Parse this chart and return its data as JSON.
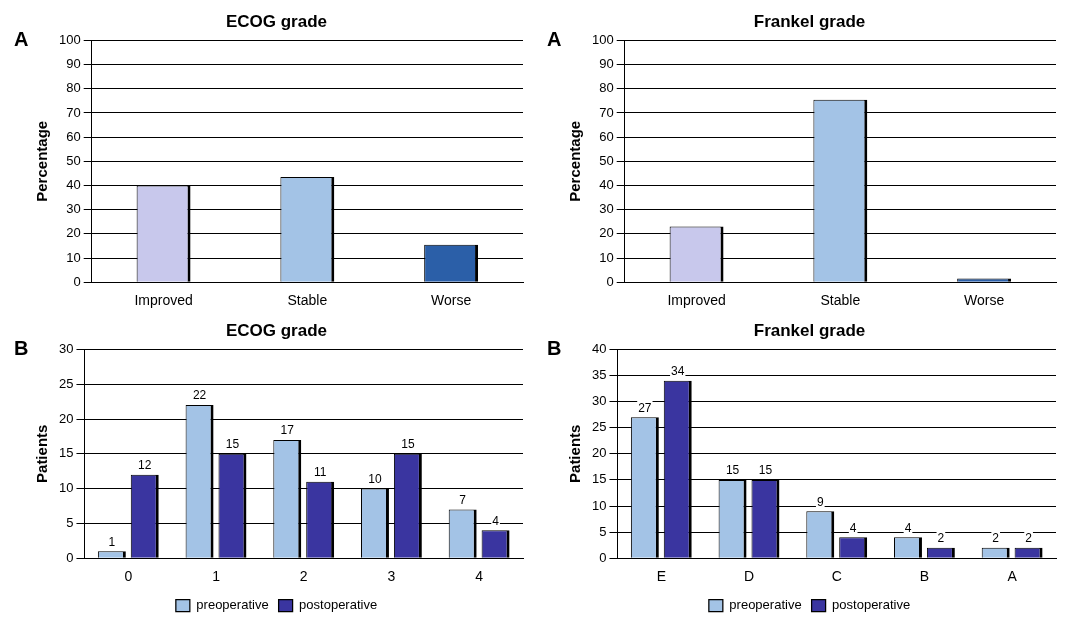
{
  "chart_data": [
    {
      "type": "bar",
      "title": "ECOG grade",
      "ylabel": "Percentage",
      "annotations": [
        "A"
      ],
      "categories": [
        "Improved",
        "Stable",
        "Worse"
      ],
      "values": [
        40,
        43.5,
        15.5
      ],
      "colors": [
        "#c8c8ec",
        "#a3c3e6",
        "#2b5fa8"
      ],
      "ylim": [
        0,
        100
      ],
      "yticks": [
        0,
        10,
        20,
        30,
        40,
        50,
        60,
        70,
        80,
        90,
        100
      ],
      "grid": "y"
    },
    {
      "type": "bar",
      "title": "Frankel grade",
      "ylabel": "Percentage",
      "annotations": [
        "A"
      ],
      "categories": [
        "Improved",
        "Stable",
        "Worse"
      ],
      "values": [
        23,
        75.5,
        1.5
      ],
      "colors": [
        "#c8c8ec",
        "#a3c3e6",
        "#2b5fa8"
      ],
      "ylim": [
        0,
        100
      ],
      "yticks": [
        0,
        10,
        20,
        30,
        40,
        50,
        60,
        70,
        80,
        90,
        100
      ],
      "grid": "y"
    },
    {
      "type": "bar",
      "title": "ECOG grade",
      "ylabel": "Patients",
      "annotations": [
        "B"
      ],
      "categories": [
        "0",
        "1",
        "2",
        "3",
        "4"
      ],
      "series": [
        {
          "name": "preoperative",
          "color": "#a3c3e6",
          "values": [
            1,
            22,
            17,
            10,
            7
          ]
        },
        {
          "name": "postoperative",
          "color": "#3a35a0",
          "values": [
            12,
            15,
            11,
            15,
            4
          ]
        }
      ],
      "ylim": [
        0,
        30
      ],
      "yticks": [
        0,
        5,
        10,
        15,
        20,
        25,
        30
      ],
      "grid": "y",
      "legend": "bottom",
      "data_labels": true
    },
    {
      "type": "bar",
      "title": "Frankel grade",
      "ylabel": "Patients",
      "annotations": [
        "B"
      ],
      "categories": [
        "E",
        "D",
        "C",
        "B",
        "A"
      ],
      "series": [
        {
          "name": "preoperative",
          "color": "#a3c3e6",
          "values": [
            27,
            15,
            9,
            4,
            2
          ]
        },
        {
          "name": "postoperative",
          "color": "#3a35a0",
          "values": [
            34,
            15,
            4,
            2,
            2
          ]
        }
      ],
      "ylim": [
        0,
        40
      ],
      "yticks": [
        0,
        5,
        10,
        15,
        20,
        25,
        30,
        35,
        40
      ],
      "grid": "y",
      "legend": "bottom",
      "data_labels": true
    }
  ]
}
